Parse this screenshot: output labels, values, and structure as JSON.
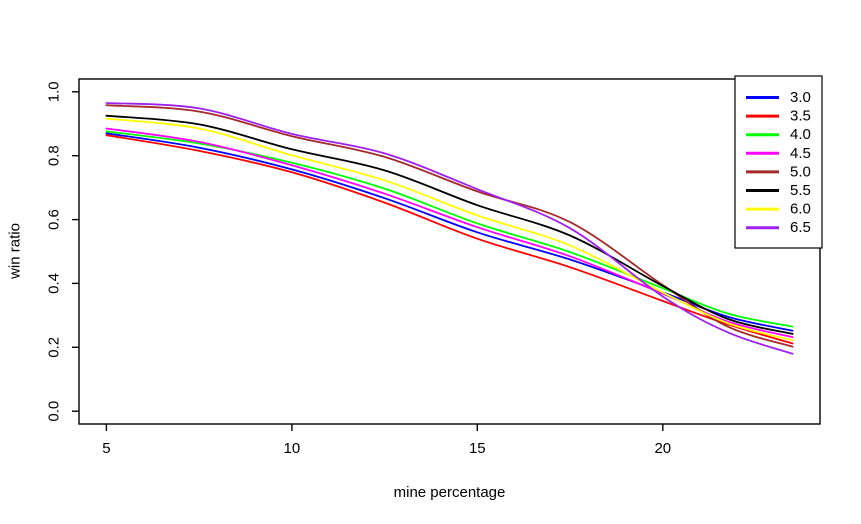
{
  "chart_data": {
    "type": "line",
    "title": "",
    "xlabel": "mine percentage",
    "ylabel": "win ratio",
    "xlim": [
      4.26,
      24.24
    ],
    "ylim": [
      -0.04,
      1.04
    ],
    "x_ticks": [
      5,
      10,
      15,
      20
    ],
    "y_ticks": [
      0.0,
      0.2,
      0.4,
      0.6,
      0.8,
      1.0
    ],
    "grid": false,
    "legend_position": "top-right",
    "x": [
      5,
      7.5,
      10,
      12.5,
      15,
      17.5,
      20,
      21.75,
      23.5
    ],
    "series": [
      {
        "name": "3.0",
        "color": "#0000FF",
        "values": [
          0.87,
          0.825,
          0.757,
          0.667,
          0.56,
          0.475,
          0.372,
          0.296,
          0.252
        ]
      },
      {
        "name": "3.5",
        "color": "#FF0000",
        "values": [
          0.864,
          0.815,
          0.748,
          0.653,
          0.54,
          0.451,
          0.345,
          0.272,
          0.212
        ]
      },
      {
        "name": "4.0",
        "color": "#00FF00",
        "values": [
          0.876,
          0.838,
          0.778,
          0.697,
          0.588,
          0.498,
          0.385,
          0.306,
          0.265
        ]
      },
      {
        "name": "4.5",
        "color": "#FF00FF",
        "values": [
          0.885,
          0.843,
          0.77,
          0.681,
          0.576,
          0.485,
          0.368,
          0.281,
          0.232
        ]
      },
      {
        "name": "5.0",
        "color": "#A52A2A",
        "values": [
          0.958,
          0.938,
          0.861,
          0.796,
          0.688,
          0.592,
          0.395,
          0.265,
          0.202
        ]
      },
      {
        "name": "5.5",
        "color": "#000000",
        "values": [
          0.925,
          0.898,
          0.82,
          0.754,
          0.645,
          0.55,
          0.392,
          0.289,
          0.242
        ]
      },
      {
        "name": "6.0",
        "color": "#FFFF00",
        "values": [
          0.916,
          0.885,
          0.801,
          0.723,
          0.613,
          0.519,
          0.372,
          0.276,
          0.222
        ]
      },
      {
        "name": "6.5",
        "color": "#A020F0",
        "values": [
          0.965,
          0.948,
          0.868,
          0.807,
          0.695,
          0.573,
          0.359,
          0.247,
          0.18
        ]
      }
    ]
  },
  "colors": {
    "axis": "#000000",
    "background": "#FFFFFF",
    "text": "#000000"
  }
}
